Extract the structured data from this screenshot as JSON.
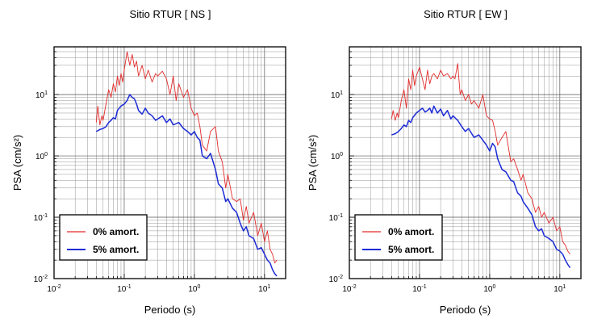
{
  "chart_data": [
    {
      "type": "line",
      "title": "Sitio RTUR [ NS ]",
      "xlabel": "Periodo (s)",
      "ylabel": "PSA (cm/s²)",
      "x_scale": "log",
      "y_scale": "log",
      "xlim": [
        0.01,
        20
      ],
      "ylim": [
        0.01,
        60
      ],
      "x_ticks": [
        {
          "value": 0.01,
          "base": "10",
          "exp": "-2"
        },
        {
          "value": 0.1,
          "base": "10",
          "exp": "-1"
        },
        {
          "value": 1,
          "base": "10",
          "exp": "0"
        },
        {
          "value": 10,
          "base": "10",
          "exp": "1"
        }
      ],
      "y_ticks": [
        {
          "value": 0.01,
          "base": "10",
          "exp": "-2"
        },
        {
          "value": 0.1,
          "base": "10",
          "exp": "-1"
        },
        {
          "value": 1,
          "base": "10",
          "exp": "0"
        },
        {
          "value": 10,
          "base": "10",
          "exp": "1"
        }
      ],
      "grid": true,
      "legend_position": "bottom-left",
      "series": [
        {
          "name": "0% amort.",
          "color": "#e32b2b",
          "x": [
            0.04,
            0.042,
            0.045,
            0.048,
            0.05,
            0.055,
            0.06,
            0.065,
            0.07,
            0.075,
            0.08,
            0.085,
            0.09,
            0.095,
            0.1,
            0.11,
            0.12,
            0.13,
            0.14,
            0.15,
            0.16,
            0.18,
            0.2,
            0.22,
            0.25,
            0.28,
            0.3,
            0.35,
            0.4,
            0.45,
            0.5,
            0.55,
            0.6,
            0.7,
            0.8,
            0.9,
            1.0,
            1.1,
            1.2,
            1.3,
            1.5,
            1.7,
            2.0,
            2.2,
            2.5,
            2.8,
            3.0,
            3.5,
            4.0,
            4.5,
            5.0,
            5.5,
            6.0,
            7.0,
            8.0,
            9.0,
            10.0,
            11.0,
            12.0,
            13.0,
            14.0,
            15.0
          ],
          "values": [
            3.5,
            6.5,
            3.2,
            4.5,
            3.8,
            7.0,
            12.0,
            9.0,
            15.0,
            11.0,
            20.0,
            14.0,
            22.0,
            16.0,
            25.0,
            50.0,
            30.0,
            45.0,
            28.0,
            35.0,
            20.0,
            30.0,
            18.0,
            25.0,
            16.0,
            22.0,
            20.0,
            24.0,
            18.0,
            10.0,
            20.0,
            8.0,
            15.0,
            9.0,
            12.0,
            6.0,
            4.5,
            5.0,
            3.0,
            1.5,
            1.2,
            2.5,
            3.0,
            1.2,
            0.8,
            0.3,
            0.5,
            0.2,
            0.18,
            0.2,
            0.09,
            0.15,
            0.08,
            0.12,
            0.05,
            0.08,
            0.04,
            0.06,
            0.03,
            0.025,
            0.018,
            0.02
          ]
        },
        {
          "name": "5% amort.",
          "color": "#1c2bd6",
          "x": [
            0.04,
            0.045,
            0.05,
            0.055,
            0.06,
            0.065,
            0.07,
            0.075,
            0.08,
            0.09,
            0.1,
            0.11,
            0.12,
            0.13,
            0.14,
            0.15,
            0.16,
            0.18,
            0.2,
            0.22,
            0.25,
            0.28,
            0.3,
            0.35,
            0.4,
            0.45,
            0.5,
            0.6,
            0.7,
            0.8,
            0.9,
            1.0,
            1.1,
            1.2,
            1.3,
            1.5,
            1.7,
            2.0,
            2.2,
            2.5,
            2.8,
            3.0,
            3.5,
            4.0,
            4.5,
            5.0,
            5.5,
            6.0,
            7.0,
            8.0,
            9.0,
            10.0,
            11.0,
            12.0,
            13.0,
            14.0,
            15.0
          ],
          "values": [
            2.5,
            2.7,
            2.8,
            3.0,
            3.5,
            3.8,
            4.2,
            4.0,
            5.5,
            6.5,
            7.0,
            8.0,
            10.0,
            9.0,
            8.5,
            7.0,
            5.5,
            4.8,
            6.0,
            5.0,
            4.5,
            3.8,
            4.0,
            4.5,
            3.5,
            4.0,
            3.2,
            3.5,
            2.8,
            2.5,
            2.2,
            2.5,
            2.0,
            1.8,
            1.0,
            0.9,
            1.1,
            0.6,
            0.35,
            0.3,
            0.18,
            0.2,
            0.14,
            0.12,
            0.08,
            0.06,
            0.07,
            0.05,
            0.045,
            0.03,
            0.032,
            0.025,
            0.02,
            0.018,
            0.014,
            0.012,
            0.011
          ]
        }
      ]
    },
    {
      "type": "line",
      "title": "Sitio RTUR [ EW ]",
      "xlabel": "Periodo (s)",
      "ylabel": "PSA (cm/s²)",
      "x_scale": "log",
      "y_scale": "log",
      "xlim": [
        0.01,
        20
      ],
      "ylim": [
        0.01,
        60
      ],
      "x_ticks": [
        {
          "value": 0.01,
          "base": "10",
          "exp": "-2"
        },
        {
          "value": 0.1,
          "base": "10",
          "exp": "-1"
        },
        {
          "value": 1,
          "base": "10",
          "exp": "0"
        },
        {
          "value": 10,
          "base": "10",
          "exp": "1"
        }
      ],
      "y_ticks": [
        {
          "value": 0.01,
          "base": "10",
          "exp": "-2"
        },
        {
          "value": 0.1,
          "base": "10",
          "exp": "-1"
        },
        {
          "value": 1,
          "base": "10",
          "exp": "0"
        },
        {
          "value": 10,
          "base": "10",
          "exp": "1"
        }
      ],
      "grid": true,
      "legend_position": "bottom-left",
      "series": [
        {
          "name": "0% amort.",
          "color": "#e32b2b",
          "x": [
            0.04,
            0.042,
            0.045,
            0.048,
            0.05,
            0.055,
            0.06,
            0.065,
            0.07,
            0.075,
            0.08,
            0.085,
            0.09,
            0.1,
            0.11,
            0.12,
            0.13,
            0.14,
            0.15,
            0.16,
            0.18,
            0.2,
            0.22,
            0.25,
            0.28,
            0.3,
            0.32,
            0.35,
            0.38,
            0.4,
            0.45,
            0.5,
            0.55,
            0.6,
            0.7,
            0.8,
            0.9,
            1.0,
            1.1,
            1.2,
            1.3,
            1.5,
            1.7,
            2.0,
            2.2,
            2.5,
            2.8,
            3.0,
            3.5,
            4.0,
            4.5,
            5.0,
            5.5,
            6.0,
            7.0,
            8.0,
            9.0,
            10.0,
            11.0,
            12.0,
            13.0,
            14.0
          ],
          "values": [
            4.0,
            5.5,
            3.8,
            5.0,
            4.2,
            8.0,
            12.0,
            6.0,
            18.0,
            12.0,
            25.0,
            14.0,
            20.0,
            28.0,
            18.0,
            12.0,
            25.0,
            15.0,
            20.0,
            22.0,
            18.0,
            25.0,
            20.0,
            22.0,
            18.0,
            20.0,
            18.0,
            32.0,
            10.0,
            12.0,
            8.0,
            10.0,
            7.0,
            8.0,
            6.0,
            10.0,
            4.5,
            4.0,
            3.8,
            2.5,
            1.5,
            2.0,
            2.5,
            0.8,
            0.9,
            0.6,
            0.4,
            0.5,
            0.25,
            0.2,
            0.12,
            0.15,
            0.1,
            0.12,
            0.08,
            0.1,
            0.06,
            0.07,
            0.04,
            0.035,
            0.028,
            0.025
          ]
        },
        {
          "name": "5% amort.",
          "color": "#1c2bd6",
          "x": [
            0.04,
            0.045,
            0.05,
            0.055,
            0.06,
            0.065,
            0.07,
            0.075,
            0.08,
            0.09,
            0.1,
            0.11,
            0.12,
            0.13,
            0.14,
            0.15,
            0.16,
            0.18,
            0.2,
            0.22,
            0.25,
            0.28,
            0.3,
            0.35,
            0.4,
            0.45,
            0.5,
            0.6,
            0.7,
            0.8,
            0.9,
            1.0,
            1.1,
            1.2,
            1.3,
            1.5,
            1.7,
            2.0,
            2.2,
            2.5,
            2.8,
            3.0,
            3.5,
            4.0,
            4.5,
            5.0,
            5.5,
            6.0,
            7.0,
            8.0,
            9.0,
            10.0,
            11.0,
            12.0,
            13.0,
            14.0
          ],
          "values": [
            2.2,
            2.3,
            2.5,
            2.8,
            3.2,
            3.0,
            3.8,
            3.5,
            4.2,
            5.0,
            5.5,
            6.0,
            5.2,
            5.5,
            6.0,
            5.0,
            6.5,
            5.0,
            5.8,
            4.5,
            5.5,
            4.0,
            4.5,
            3.8,
            3.0,
            2.5,
            2.8,
            2.0,
            2.2,
            1.8,
            1.5,
            1.2,
            1.6,
            1.4,
            0.9,
            0.6,
            0.55,
            0.4,
            0.38,
            0.25,
            0.22,
            0.18,
            0.14,
            0.11,
            0.07,
            0.06,
            0.065,
            0.05,
            0.045,
            0.04,
            0.03,
            0.028,
            0.025,
            0.02,
            0.017,
            0.015
          ]
        }
      ]
    }
  ]
}
